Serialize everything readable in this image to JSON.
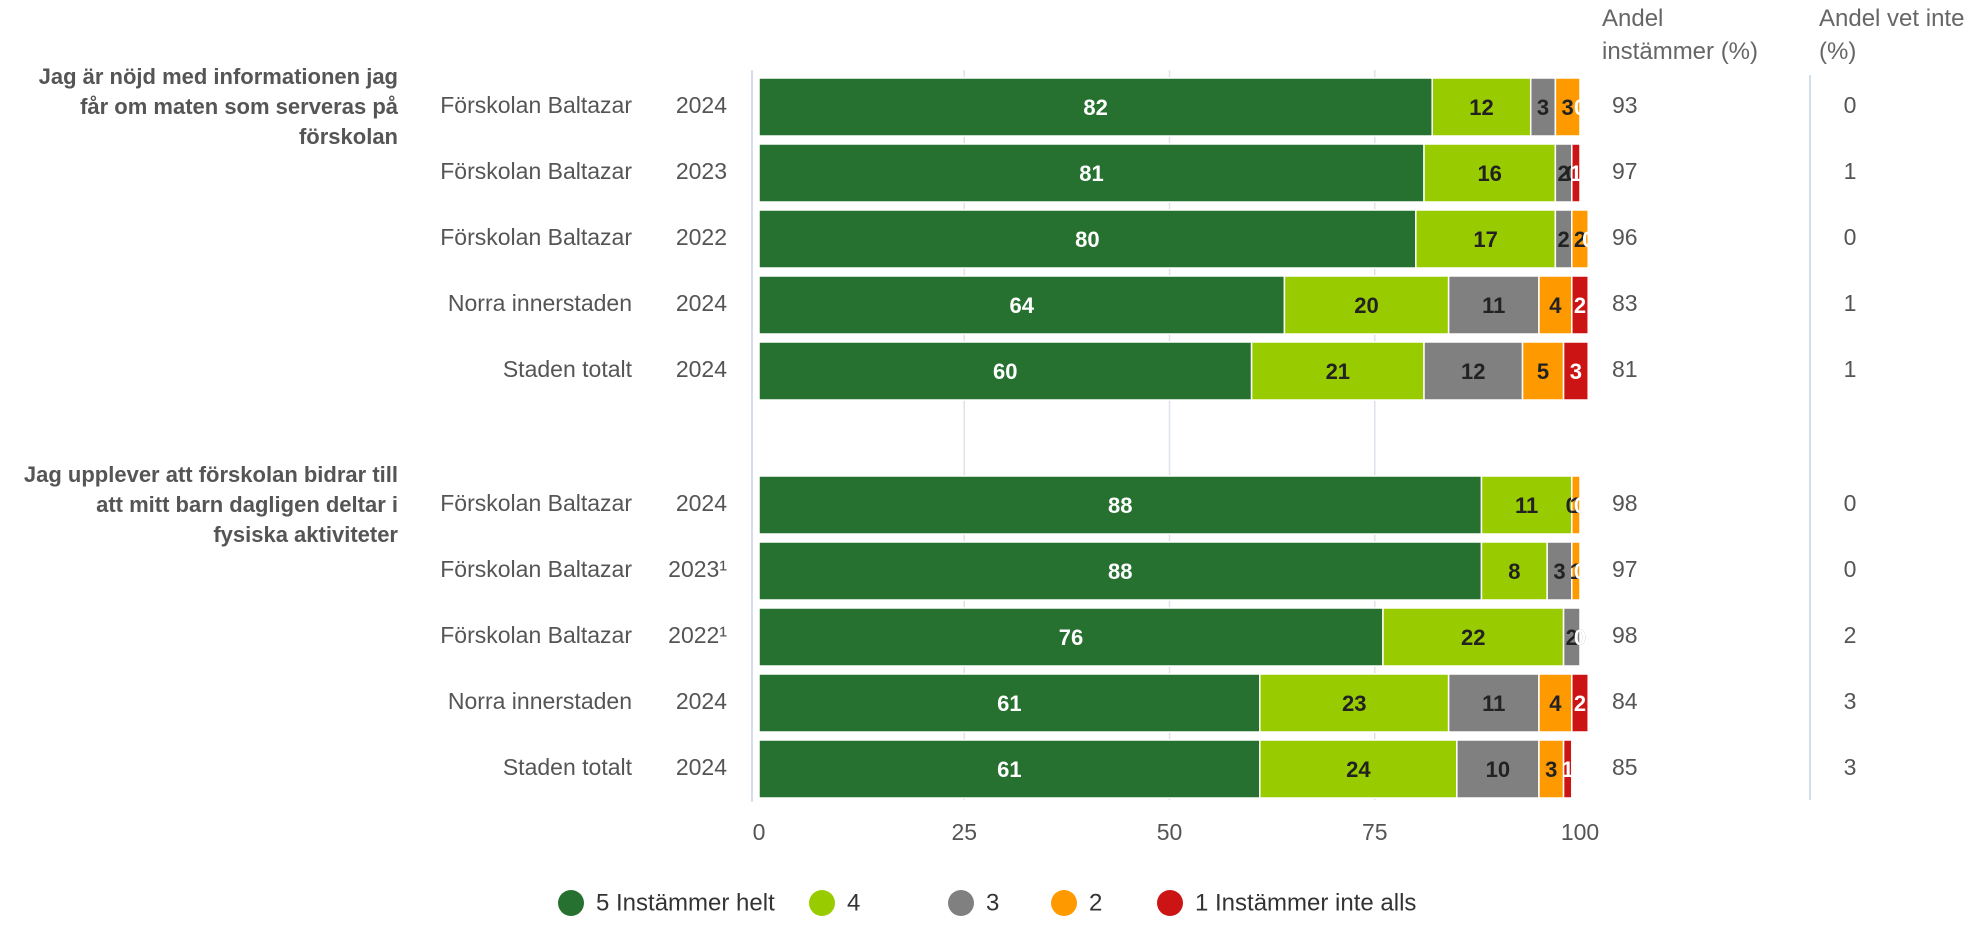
{
  "chart_data": {
    "type": "bar",
    "orientation": "horizontal",
    "stacked": true,
    "groups": [
      {
        "title": "Jag är nöjd med informationen jag får om maten som serveras på förskolan"
      },
      {
        "title": "Jag upplever att förskolan bidrar till att mitt barn dagligen deltar i fysiska aktiviteter"
      }
    ],
    "categories": [
      "Förskolan Baltazar",
      "Förskolan Baltazar",
      "Förskolan Baltazar",
      "Norra innerstaden",
      "Staden totalt",
      "Förskolan Baltazar",
      "Förskolan Baltazar",
      "Förskolan Baltazar",
      "Norra innerstaden",
      "Staden totalt"
    ],
    "years": [
      "2024",
      "2023",
      "2022",
      "2024",
      "2024",
      "2024",
      "2023¹",
      "2022¹",
      "2024",
      "2024"
    ],
    "series": [
      {
        "name": "5 Instämmer helt",
        "color": "#267130",
        "values": [
          82,
          81,
          80,
          64,
          60,
          88,
          88,
          76,
          61,
          61
        ]
      },
      {
        "name": "4",
        "color": "#99cc00",
        "values": [
          12,
          16,
          17,
          20,
          21,
          11,
          8,
          22,
          23,
          24
        ]
      },
      {
        "name": "3",
        "color": "#808080",
        "values": [
          3,
          2,
          2,
          11,
          12,
          0,
          3,
          2,
          11,
          10
        ]
      },
      {
        "name": "2",
        "color": "#ff9900",
        "values": [
          3,
          0,
          2,
          4,
          5,
          1,
          1,
          0,
          4,
          3
        ]
      },
      {
        "name": "1 Instämmer inte alls",
        "color": "#cc1414",
        "values": [
          0,
          1,
          0,
          2,
          3,
          0,
          0,
          0,
          2,
          1
        ]
      }
    ],
    "columns": [
      {
        "title": "Andel instämmer (%)",
        "values": [
          93,
          97,
          96,
          83,
          81,
          98,
          97,
          98,
          84,
          85
        ]
      },
      {
        "title": "Andel vet inte (%)",
        "values": [
          0,
          1,
          0,
          1,
          1,
          0,
          0,
          2,
          3,
          3
        ]
      }
    ],
    "xlim": [
      0,
      100
    ],
    "xticks": [
      0,
      25,
      50,
      75,
      100
    ],
    "grid": true,
    "legend": "bottom"
  }
}
